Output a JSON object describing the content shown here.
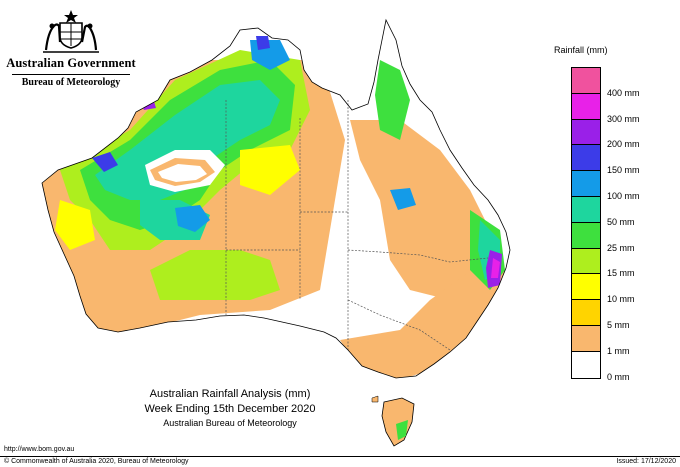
{
  "header": {
    "government": "Australian Government",
    "agency": "Bureau of Meteorology"
  },
  "legend": {
    "title": "Rainfall (mm)",
    "colors": [
      "#f0529e",
      "#e821e8",
      "#9a20e8",
      "#3c3ce8",
      "#149be8",
      "#1ed69e",
      "#3ee03e",
      "#aeee1e",
      "#ffff00",
      "#ffd400",
      "#f9b76e",
      "#ffffff"
    ],
    "labels": [
      "400 mm",
      "300 mm",
      "200 mm",
      "150 mm",
      "100 mm",
      "50 mm",
      "25 mm",
      "15 mm",
      "10 mm",
      "5 mm",
      "1 mm",
      "0 mm"
    ]
  },
  "caption": {
    "line1": "Australian Rainfall Analysis (mm)",
    "line2": "Week Ending 15th December 2020",
    "line3": "Australian Bureau of Meteorology"
  },
  "footer": {
    "url": "http://www.bom.gov.au",
    "copyright": "© Commonwealth of Australia 2020, Bureau of Meteorology",
    "issued": "Issued: 17/12/2020"
  }
}
